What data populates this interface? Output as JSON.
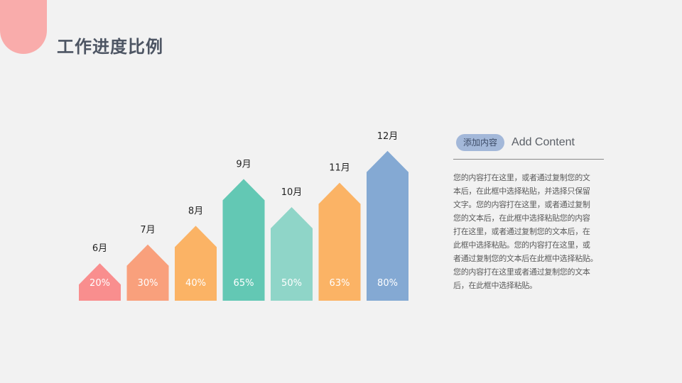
{
  "title": "工作进度比例",
  "chart_data": {
    "type": "bar",
    "categories": [
      "6月",
      "7月",
      "8月",
      "9月",
      "10月",
      "11月",
      "12月"
    ],
    "values": [
      20,
      30,
      40,
      65,
      50,
      63,
      80
    ],
    "value_labels": [
      "20%",
      "30%",
      "40%",
      "65%",
      "50%",
      "63%",
      "80%"
    ],
    "colors": [
      "#f98e8e",
      "#f9a07c",
      "#fbb365",
      "#63c8b4",
      "#8fd5c8",
      "#fbb365",
      "#84a9d3"
    ],
    "ylim": [
      0,
      100
    ],
    "grid": false,
    "legend": "none"
  },
  "panel": {
    "tag": "添加内容",
    "heading": "Add Content",
    "body": "您的内容打在这里，或者通过复制您的文\n本后，在此框中选择粘贴，并选择只保留\n文字。您的内容打在这里，或者通过复制\n您的文本后，在此框中选择粘贴您的内容\n打在这里，或者通过复制您的文本后，在\n此框中选择粘贴。您的内容打在这里，或\n者通过复制您的文本后在此框中选择粘贴。\n您的内容打在这里或者通过复制您的文本\n后，在此框中选择粘贴。",
    "tag_color": "#a3b8d9"
  }
}
